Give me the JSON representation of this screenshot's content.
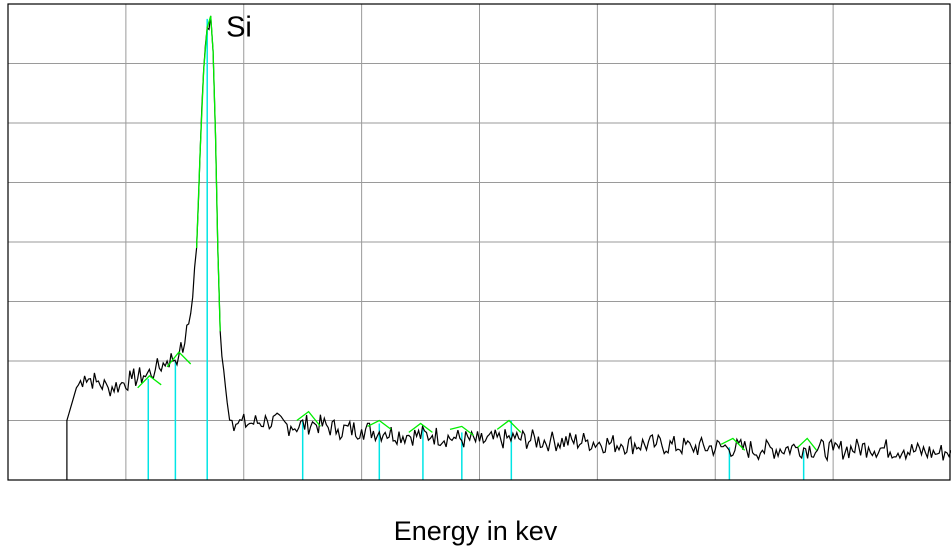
{
  "chart_data": {
    "type": "line",
    "title": "",
    "xlabel": "Energy in kev",
    "ylabel": "",
    "grid": true,
    "xlim": [
      0,
      8
    ],
    "ylim": [
      0,
      8
    ],
    "annotations": [
      {
        "text": "Si",
        "x": 1.85,
        "y": 7.45
      }
    ],
    "colors": {
      "spectrum": "#000000",
      "peak_fit": "#00ee00",
      "marker": "#00e5e5",
      "grid": "#9a9a9a"
    },
    "spectrum": {
      "x": [
        0.5,
        0.5,
        0.58,
        0.65,
        0.75,
        0.85,
        0.95,
        1.05,
        1.15,
        1.25,
        1.35,
        1.45,
        1.5,
        1.55,
        1.6,
        1.63,
        1.66,
        1.69,
        1.72,
        1.74,
        1.76,
        1.78,
        1.8,
        1.83,
        1.86,
        1.9,
        1.95,
        2.05,
        2.2,
        2.4,
        2.6,
        2.8,
        3.0,
        3.2,
        3.4,
        3.6,
        3.8,
        4.0,
        4.3,
        4.6,
        4.9,
        5.2,
        5.5,
        5.8,
        6.1,
        6.4,
        6.7,
        7.0,
        7.3,
        7.6,
        7.9,
        8.0
      ],
      "y": [
        0,
        1.0,
        1.55,
        1.75,
        1.65,
        1.55,
        1.6,
        1.7,
        1.75,
        1.85,
        2.0,
        2.1,
        2.3,
        2.8,
        3.9,
        5.5,
        6.9,
        7.6,
        7.8,
        7.2,
        5.8,
        3.9,
        2.5,
        1.85,
        1.3,
        1.0,
        0.95,
        0.95,
        1.0,
        0.9,
        0.95,
        0.85,
        0.85,
        0.8,
        0.75,
        0.75,
        0.7,
        0.65,
        0.7,
        0.65,
        0.65,
        0.6,
        0.6,
        0.55,
        0.55,
        0.5,
        0.55,
        0.5,
        0.55,
        0.5,
        0.45,
        0.5
      ]
    },
    "peak_fits": [
      {
        "x": [
          1.1,
          1.2,
          1.3
        ],
        "y": [
          1.55,
          1.75,
          1.6
        ]
      },
      {
        "x": [
          1.35,
          1.45,
          1.55
        ],
        "y": [
          1.9,
          2.15,
          1.95
        ]
      },
      {
        "x": [
          1.6,
          1.63,
          1.66,
          1.69,
          1.72,
          1.74,
          1.76,
          1.78,
          1.8
        ],
        "y": [
          3.9,
          5.5,
          6.9,
          7.6,
          7.8,
          7.2,
          5.8,
          3.9,
          2.5
        ]
      },
      {
        "x": [
          2.45,
          2.55,
          2.65
        ],
        "y": [
          1.0,
          1.15,
          0.9
        ]
      },
      {
        "x": [
          3.05,
          3.15,
          3.25
        ],
        "y": [
          0.9,
          1.0,
          0.85
        ]
      },
      {
        "x": [
          3.4,
          3.5,
          3.6
        ],
        "y": [
          0.8,
          0.95,
          0.8
        ]
      },
      {
        "x": [
          3.75,
          3.85,
          3.95
        ],
        "y": [
          0.85,
          0.9,
          0.75
        ]
      },
      {
        "x": [
          4.15,
          4.25,
          4.35
        ],
        "y": [
          0.85,
          1.0,
          0.8
        ]
      },
      {
        "x": [
          6.05,
          6.15,
          6.25
        ],
        "y": [
          0.6,
          0.7,
          0.5
        ]
      },
      {
        "x": [
          6.7,
          6.78,
          6.86
        ],
        "y": [
          0.55,
          0.7,
          0.5
        ]
      }
    ],
    "markers": [
      {
        "x": 1.19,
        "height": 1.7
      },
      {
        "x": 1.42,
        "height": 2.0
      },
      {
        "x": 1.69,
        "height": 7.75
      },
      {
        "x": 2.5,
        "height": 1.0
      },
      {
        "x": 3.15,
        "height": 0.95
      },
      {
        "x": 3.52,
        "height": 0.9
      },
      {
        "x": 3.85,
        "height": 0.8
      },
      {
        "x": 4.27,
        "height": 1.0
      },
      {
        "x": 6.12,
        "height": 0.55
      },
      {
        "x": 6.75,
        "height": 0.5
      }
    ]
  }
}
